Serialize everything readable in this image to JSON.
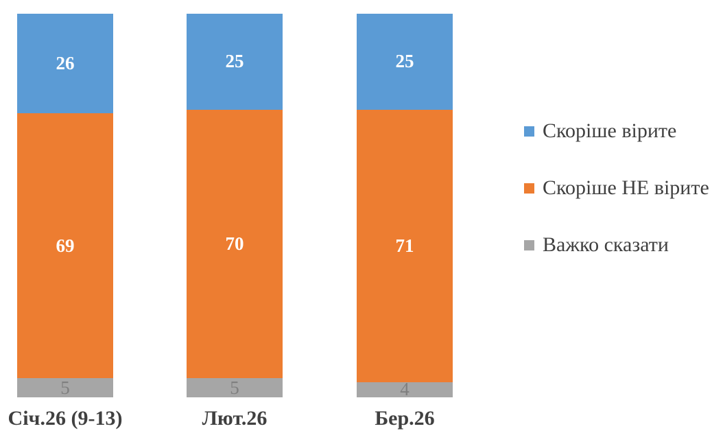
{
  "chart_data": {
    "type": "bar",
    "stacked": true,
    "orientation": "vertical",
    "categories": [
      "Січ.26 (9-13)",
      "Лют.26",
      "Бер.26"
    ],
    "series": [
      {
        "name": "Скоріше вірите",
        "color": "#5B9BD5",
        "label_color": "#FFFFFF",
        "values": [
          26,
          25,
          25
        ]
      },
      {
        "name": "Скоріше НЕ вірите",
        "color": "#ED7D31",
        "label_color": "#FFFFFF",
        "values": [
          69,
          70,
          71
        ]
      },
      {
        "name": "Важко сказати",
        "color": "#A6A6A6",
        "label_color": "#7F7F7F",
        "values": [
          5,
          5,
          4
        ]
      }
    ],
    "ylim": [
      0,
      100
    ],
    "grid": false,
    "axes_visible": false,
    "data_labels": true,
    "legend_position": "right",
    "category_label_color": "#404040",
    "legend_text_color": "#404040",
    "background_color": "#FFFFFF"
  }
}
